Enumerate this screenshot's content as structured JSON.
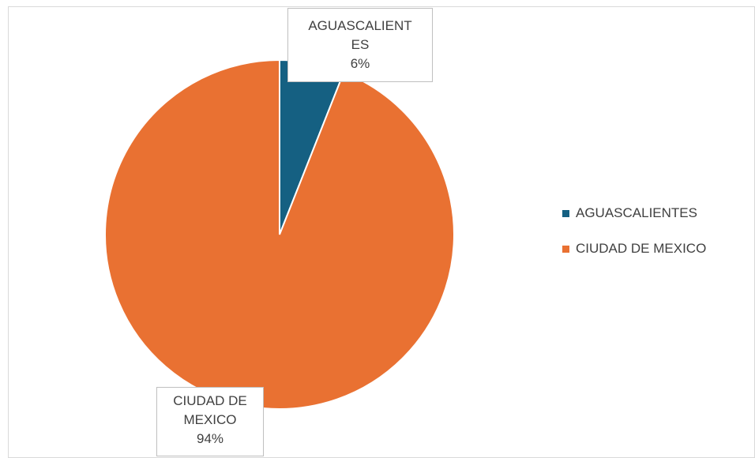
{
  "chart_data": {
    "type": "pie",
    "title": "",
    "categories": [
      "AGUASCALIENTES",
      "CIUDAD DE MEXICO"
    ],
    "values": [
      6,
      94
    ],
    "colors": [
      "#156082",
      "#E97132"
    ],
    "data_labels": [
      {
        "lines": [
          "AGUASCALIENT",
          "ES",
          "6%"
        ]
      },
      {
        "lines": [
          "CIUDAD DE",
          "MEXICO",
          "94%"
        ]
      }
    ],
    "legend": {
      "placement": "right",
      "items": [
        {
          "label": "AGUASCALIENTES",
          "color": "#156082"
        },
        {
          "label": "CIUDAD DE MEXICO",
          "color": "#E97132"
        }
      ]
    }
  }
}
